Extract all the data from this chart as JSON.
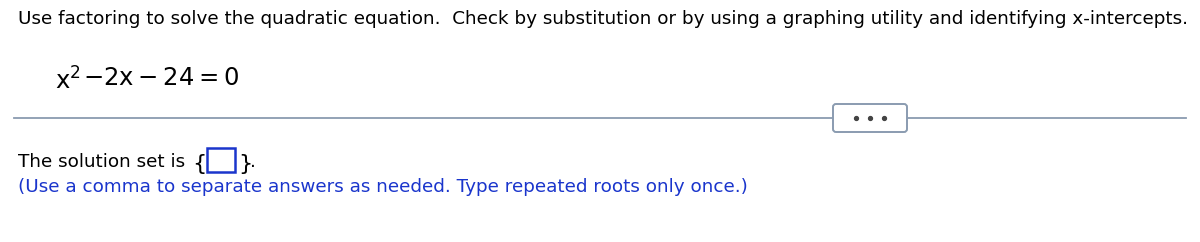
{
  "background_color": "#ffffff",
  "instruction_text": "Use factoring to solve the quadratic equation.  Check by substitution or by using a graphing utility and identifying x-intercepts.",
  "solution_prefix": "The solution set is ",
  "hint_text": "(Use a comma to separate answers as needed. Type repeated roots only once.)",
  "divider_color": "#8a9bb0",
  "dots_button_color": "#8a9bb0",
  "dots_button_fill": "#ffffff",
  "brace_color": "#000000",
  "input_box_color": "#1a35cc",
  "dot_color": "#444444",
  "hint_color": "#1a35cc",
  "title_fontsize": 13.2,
  "eq_fontsize": 15.5,
  "sol_fontsize": 13.2,
  "hint_fontsize": 13.2
}
